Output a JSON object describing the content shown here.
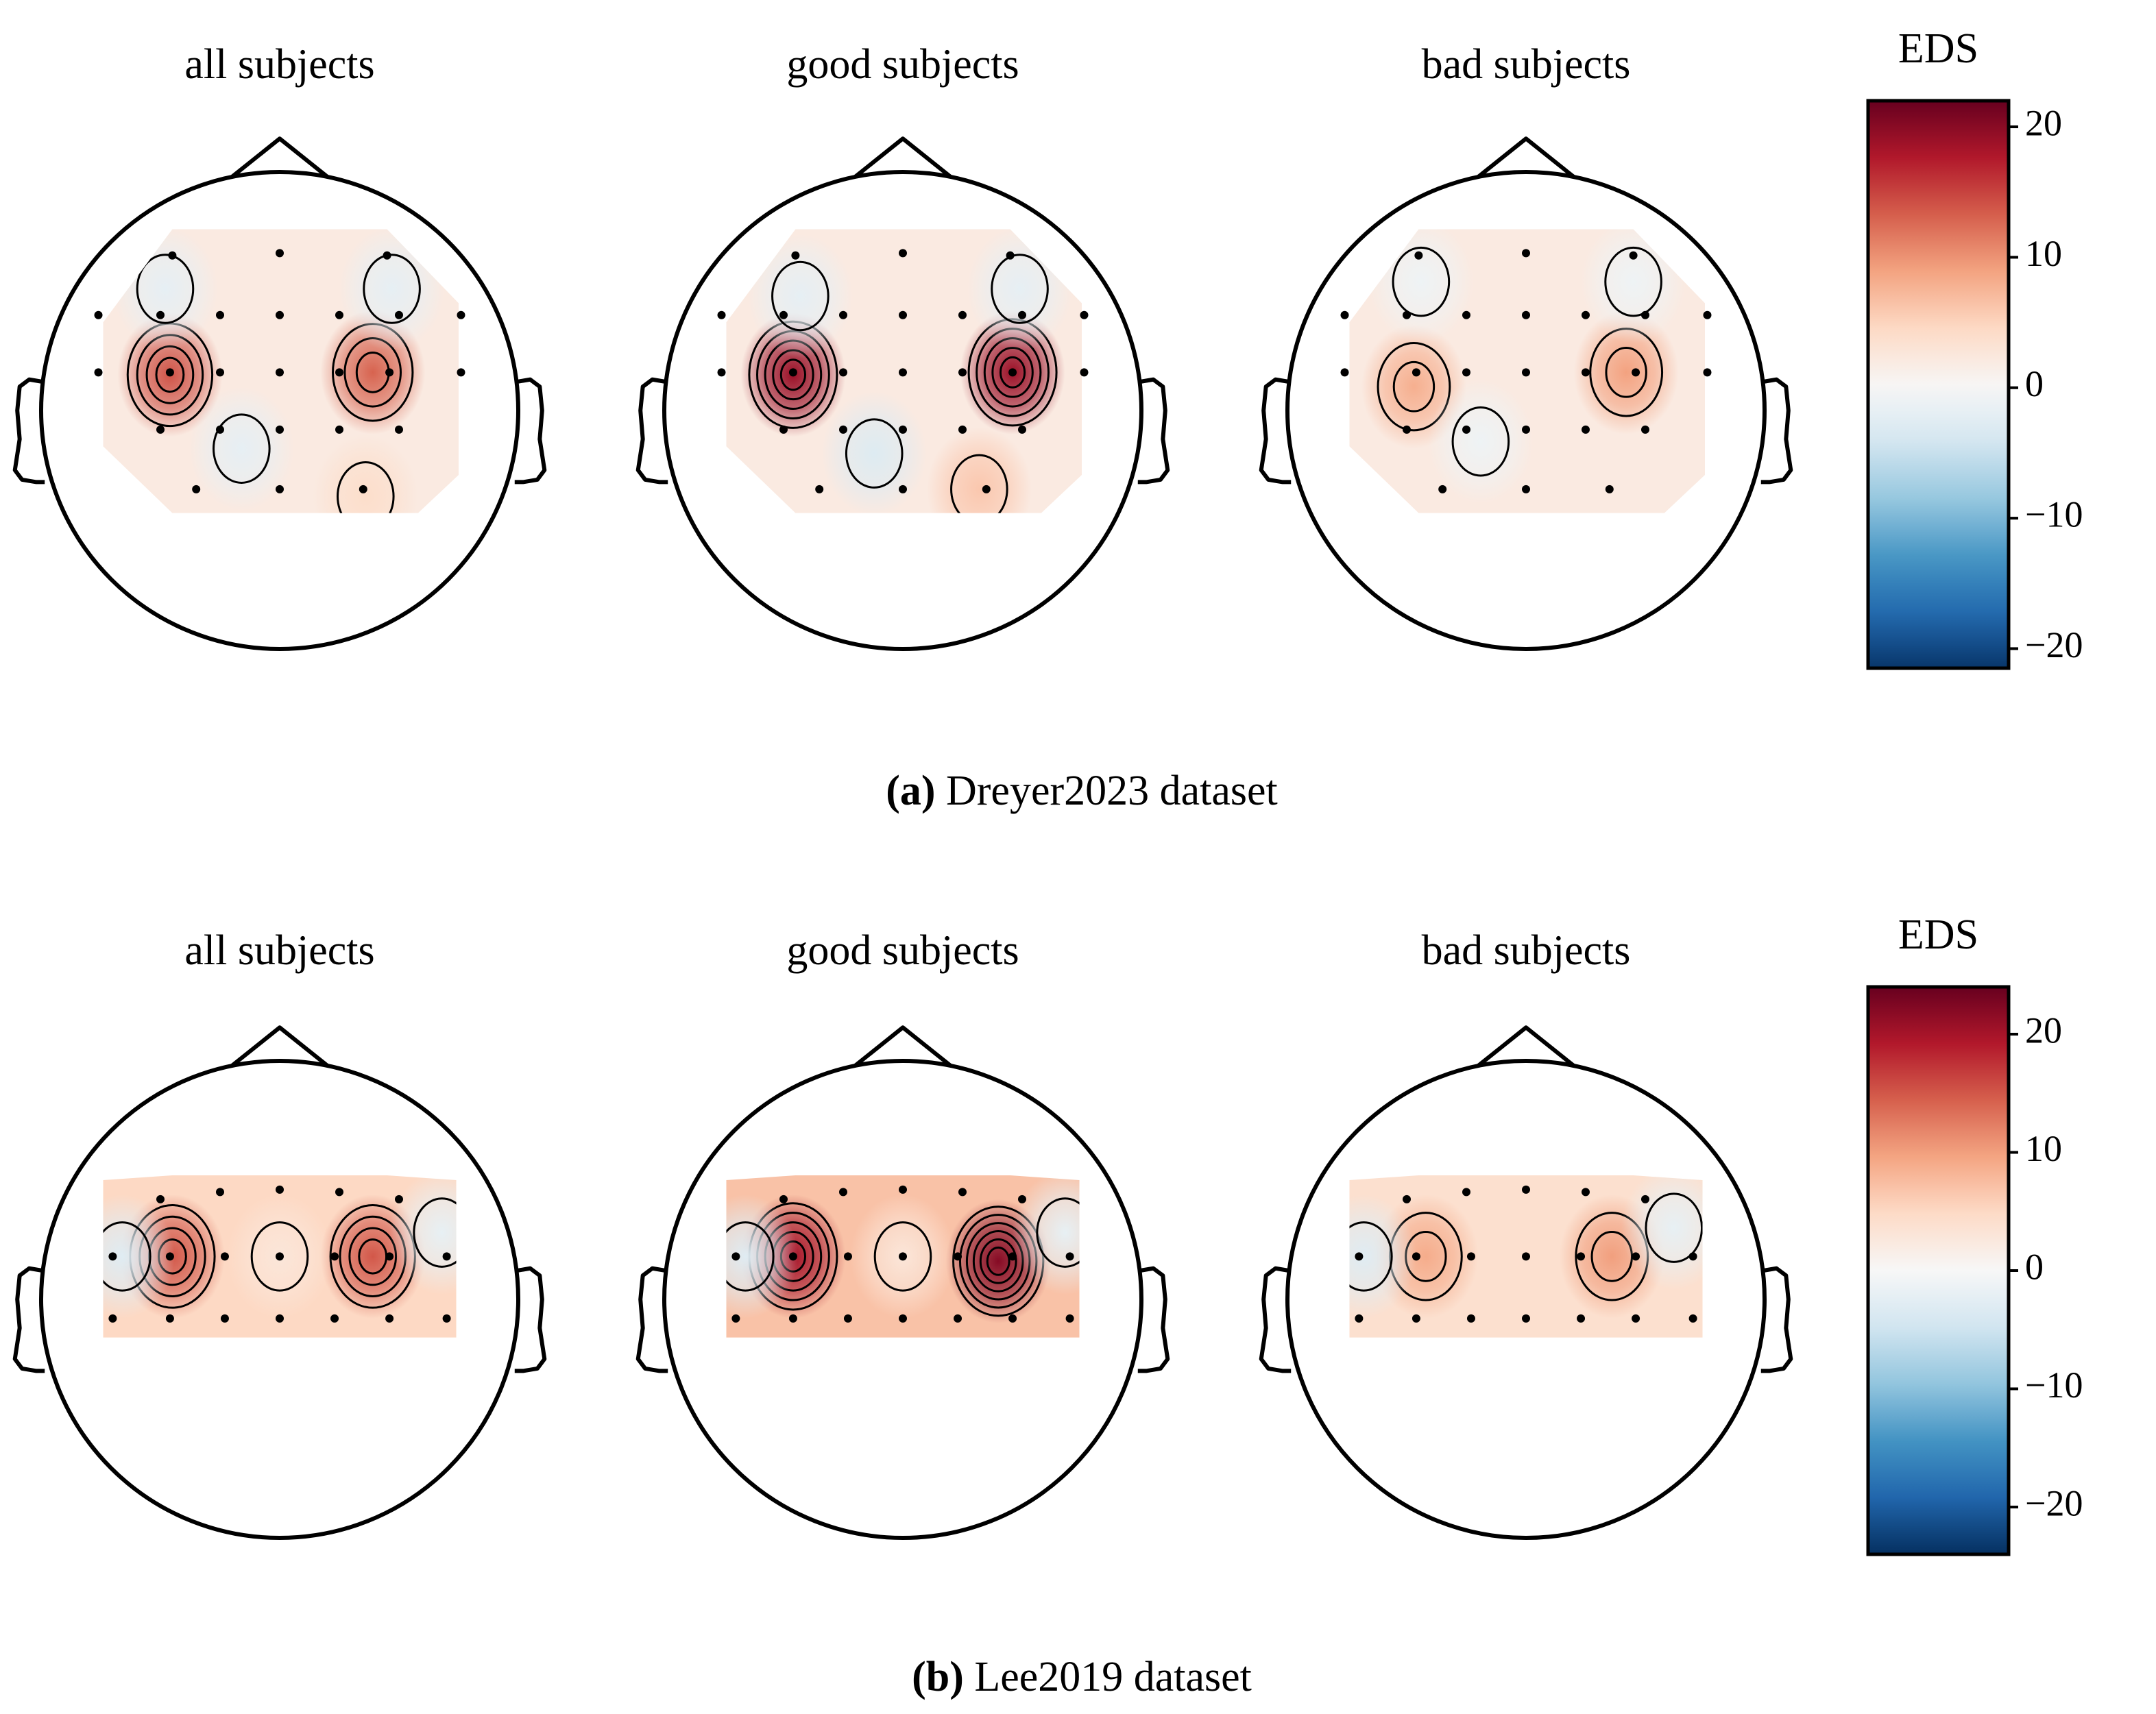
{
  "chart_data": [
    {
      "type": "topomap",
      "caption_label": "(a)",
      "caption": "Dreyer2023 dataset",
      "colorbar": {
        "title": "EDS",
        "ylim": [
          -21.5,
          22
        ],
        "yticks": [
          {
            "value": -20,
            "label": "−20"
          },
          {
            "value": -10,
            "label": "−10"
          },
          0,
          10,
          20
        ]
      },
      "panels": [
        {
          "title": "all subjects",
          "background": 2,
          "x": [
            -0.46,
            0.39,
            -0.48,
            0.47,
            -0.16,
            0.36
          ],
          "y": [
            0.15,
            0.16,
            0.51,
            0.51,
            -0.16,
            -0.36
          ],
          "values": [
            14,
            13,
            -2,
            -2,
            -2,
            4
          ]
        },
        {
          "title": "good subjects",
          "background": 2,
          "x": [
            -0.46,
            0.46,
            -0.43,
            0.49,
            -0.12,
            0.32
          ],
          "y": [
            0.15,
            0.16,
            0.48,
            0.51,
            -0.18,
            -0.33
          ],
          "values": [
            19,
            19,
            -2,
            -2,
            -3,
            6
          ]
        },
        {
          "title": "bad subjects",
          "background": 2,
          "x": [
            -0.47,
            0.42,
            -0.44,
            0.45,
            -0.19
          ],
          "y": [
            0.1,
            0.16,
            0.54,
            0.54,
            -0.13
          ],
          "values": [
            8,
            9,
            -1,
            -1,
            -1
          ]
        }
      ]
    },
    {
      "type": "topomap",
      "caption_label": "(b)",
      "caption": "Lee2019 dataset",
      "colorbar": {
        "title": "EDS",
        "ylim": [
          -24,
          24
        ],
        "yticks": [
          {
            "value": -20,
            "label": "−20"
          },
          {
            "value": -10,
            "label": "−10"
          },
          0,
          10,
          20
        ]
      },
      "panels": [
        {
          "title": "all subjects",
          "background": 5,
          "x": [
            -0.45,
            0.39,
            -0.66,
            0.68,
            0
          ],
          "y": [
            0.18,
            0.18,
            0.18,
            0.28,
            0.18
          ],
          "values": [
            15,
            15,
            -3,
            -2,
            3
          ]
        },
        {
          "title": "good subjects",
          "background": 7,
          "x": [
            -0.46,
            0.4,
            -0.66,
            0.68,
            0
          ],
          "y": [
            0.18,
            0.16,
            0.18,
            0.28,
            0.18
          ],
          "values": [
            20,
            22,
            -3,
            -2,
            3
          ]
        },
        {
          "title": "bad subjects",
          "background": 4,
          "x": [
            -0.42,
            0.36,
            -0.68,
            0.62
          ],
          "y": [
            0.18,
            0.18,
            0.18,
            0.3
          ],
          "values": [
            9,
            10,
            -3,
            -2
          ]
        }
      ]
    }
  ]
}
